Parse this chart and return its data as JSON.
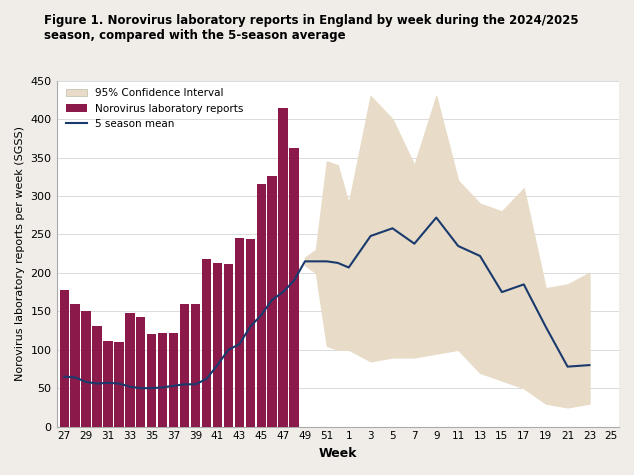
{
  "title": "Figure 1. Norovirus laboratory reports in England by week during the 2024/2025\nseason, compared with the 5-season average",
  "xlabel": "Week",
  "ylabel": "Norovirus laboratory reports per week (SGSS)",
  "ylim": [
    0,
    450
  ],
  "yticks": [
    0,
    50,
    100,
    150,
    200,
    250,
    300,
    350,
    400,
    450
  ],
  "x_tick_labels": [
    "27",
    "29",
    "31",
    "33",
    "35",
    "37",
    "39",
    "41",
    "43",
    "45",
    "47",
    "49",
    "51",
    "1",
    "3",
    "5",
    "7",
    "9",
    "11",
    "13",
    "15",
    "17",
    "19",
    "21",
    "23",
    "25"
  ],
  "bar_weeks": [
    27,
    28,
    29,
    30,
    31,
    32,
    33,
    34,
    35,
    36,
    37,
    38,
    39,
    40,
    41,
    42,
    43,
    44,
    45,
    46,
    47,
    48
  ],
  "bar_values": [
    178,
    160,
    150,
    131,
    111,
    110,
    148,
    142,
    120,
    122,
    122,
    160,
    160,
    218,
    213,
    211,
    246,
    244,
    316,
    326,
    414,
    363
  ],
  "bar_color": "#8B1A4A",
  "mean_weeks": [
    27,
    28,
    29,
    30,
    31,
    32,
    33,
    34,
    35,
    36,
    37,
    38,
    39,
    40,
    41,
    42,
    43,
    44,
    45,
    46,
    47,
    48,
    49,
    50,
    51,
    52,
    53,
    55,
    57,
    59,
    61,
    63,
    65,
    67,
    69,
    71,
    73,
    75
  ],
  "mean_y": [
    65,
    64,
    58,
    56,
    57,
    56,
    52,
    50,
    50,
    51,
    53,
    55,
    55,
    62,
    80,
    100,
    107,
    130,
    145,
    165,
    175,
    190,
    215,
    215,
    215,
    213,
    207,
    248,
    258,
    238,
    272,
    235,
    222,
    175,
    185,
    130,
    78,
    80
  ],
  "mean_color": "#1a3a6e",
  "ci_weeks": [
    49,
    50,
    51,
    52,
    53,
    55,
    57,
    59,
    61,
    63,
    65,
    67,
    69,
    71,
    73,
    75
  ],
  "ci_upper": [
    220,
    230,
    345,
    340,
    290,
    430,
    400,
    340,
    430,
    320,
    290,
    280,
    310,
    180,
    185,
    200
  ],
  "ci_lower": [
    210,
    200,
    105,
    100,
    100,
    85,
    90,
    90,
    95,
    100,
    70,
    60,
    50,
    30,
    25,
    30
  ],
  "ci_color": "#e8dcc8",
  "background_color": "#f0ede8",
  "plot_bg": "#ffffff"
}
